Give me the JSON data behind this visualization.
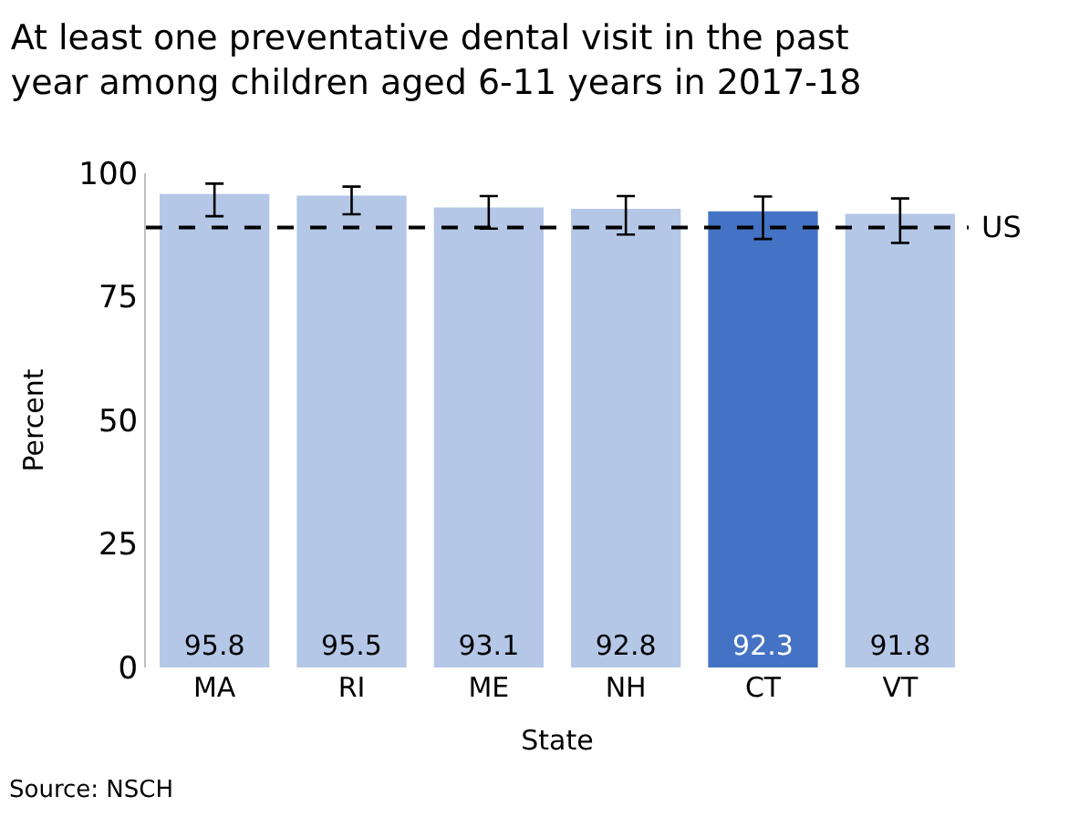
{
  "chart_data": {
    "type": "bar",
    "title": "At least one preventative dental visit in the past year among children aged 6-11 years in 2017-18",
    "categories": [
      "MA",
      "RI",
      "ME",
      "NH",
      "CT",
      "VT"
    ],
    "values": [
      95.8,
      95.5,
      93.1,
      92.8,
      92.3,
      91.8
    ],
    "colors": [
      "#b4c7e7",
      "#b4c7e7",
      "#b4c7e7",
      "#b4c7e7",
      "#4472c4",
      "#b4c7e7"
    ],
    "errors": [
      [
        91.3,
        97.9
      ],
      [
        91.7,
        97.3
      ],
      [
        88.8,
        95.4
      ],
      [
        87.6,
        95.4
      ],
      [
        86.7,
        95.3
      ],
      [
        85.9,
        94.9
      ]
    ],
    "data_labels": true,
    "xlabel": "State",
    "ylabel": "Percent",
    "ylim": [
      0,
      100
    ],
    "yticks": [
      0,
      25,
      50,
      75,
      100
    ],
    "ref_lines": [
      {
        "axis": "y",
        "value": 89,
        "label": "US",
        "color": "#000000",
        "line_style": "dashed"
      }
    ],
    "annotations": [
      "Source: NSCH"
    ]
  }
}
